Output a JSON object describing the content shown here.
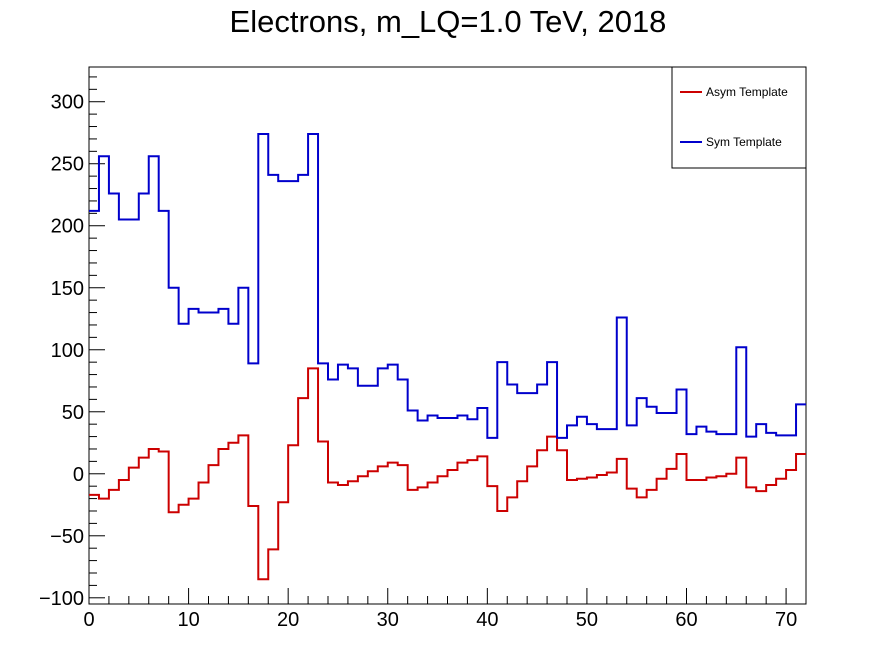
{
  "chart_data": {
    "type": "line",
    "title": "Electrons, m_LQ=1.0 TeV, 2018",
    "xlabel": "",
    "ylabel": "",
    "xlim": [
      0,
      72
    ],
    "ylim": [
      -105,
      328
    ],
    "x_ticks": [
      0,
      10,
      20,
      30,
      40,
      50,
      60,
      70
    ],
    "y_ticks": [
      -100,
      -50,
      0,
      50,
      100,
      150,
      200,
      250,
      300
    ],
    "y_tick_labels": [
      "−100",
      "−50",
      "0",
      "50",
      "100",
      "150",
      "200",
      "250",
      "300"
    ],
    "bin_edges_start": 0,
    "bin_width": 1,
    "legend_position": "top-right",
    "grid": false,
    "series": [
      {
        "name": "Asym Template",
        "color": "#cc0000",
        "values": [
          -17,
          -20,
          -13,
          -5,
          5,
          13,
          20,
          18,
          -31,
          -25,
          -20,
          -7,
          7,
          20,
          25,
          31,
          -26,
          -85,
          -61,
          -23,
          23,
          61,
          85,
          26,
          -7,
          -9,
          -6,
          -2,
          2,
          6,
          9,
          7,
          -13,
          -11,
          -7,
          -2,
          3,
          9,
          11,
          14,
          -10,
          -30,
          -19,
          -6,
          6,
          19,
          30,
          19,
          -5,
          -4,
          -3,
          -1,
          1,
          12,
          -12,
          -19,
          -13,
          -4,
          4,
          16,
          -5,
          -5,
          -3,
          -2,
          0,
          13,
          -11,
          -14,
          -9,
          -4,
          3,
          16
        ]
      },
      {
        "name": "Sym Template",
        "color": "#0000cc",
        "values": [
          212,
          256,
          226,
          205,
          205,
          226,
          256,
          212,
          150,
          121,
          133,
          130,
          130,
          133,
          121,
          150,
          89,
          274,
          241,
          236,
          236,
          241,
          274,
          89,
          76,
          88,
          85,
          71,
          71,
          85,
          88,
          76,
          51,
          43,
          47,
          45,
          45,
          47,
          44,
          53,
          29,
          90,
          72,
          65,
          65,
          72,
          90,
          29,
          39,
          46,
          40,
          36,
          36,
          126,
          39,
          61,
          54,
          49,
          49,
          68,
          32,
          38,
          34,
          32,
          32,
          102,
          30,
          40,
          33,
          31,
          31,
          56
        ]
      }
    ]
  }
}
